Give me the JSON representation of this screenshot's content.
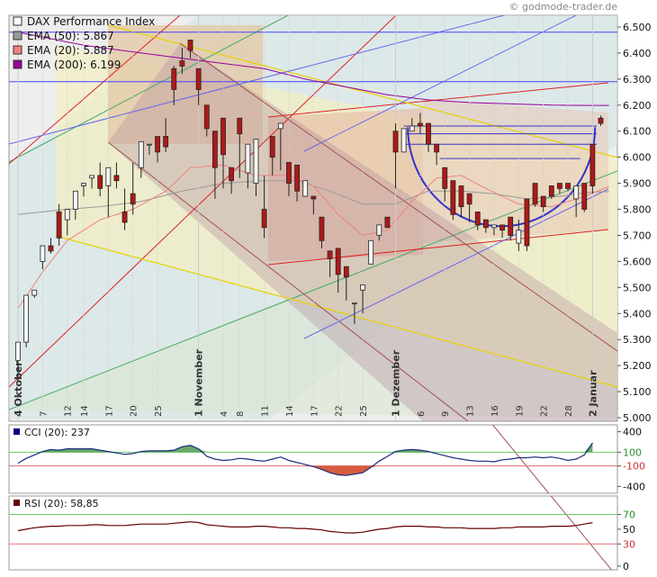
{
  "watermark": "© godmode-trader.de",
  "chart_data": [
    {
      "type": "candlestick",
      "title": "DAX Performance Index",
      "ylim": [
        5000,
        6550
      ],
      "y_ticks": [
        "6.500",
        "6.400",
        "6.300",
        "6.200",
        "6.100",
        "6.000",
        "5.900",
        "5.800",
        "5.700",
        "5.600",
        "5.500",
        "5.400",
        "5.300",
        "5.200",
        "5.100",
        "5.000"
      ],
      "y_tick_values": [
        6500,
        6400,
        6300,
        6200,
        6100,
        6000,
        5900,
        5800,
        5700,
        5600,
        5500,
        5400,
        5300,
        5200,
        5100,
        5000
      ],
      "legend": [
        {
          "label": "DAX Performance Index",
          "color": "#ffffff"
        },
        {
          "label": "EMA (50): 5.867",
          "color": "#999999"
        },
        {
          "label": "EMA (20): 5.887",
          "color": "#f08080"
        },
        {
          "label": "EMA (200): 6.199",
          "color": "#990099"
        }
      ],
      "date_labels": [
        {
          "text": "4 Oktober",
          "month": true,
          "i": 0
        },
        {
          "text": "7",
          "i": 3
        },
        {
          "text": "12",
          "i": 6
        },
        {
          "text": "14",
          "i": 8
        },
        {
          "text": "17",
          "i": 11
        },
        {
          "text": "20",
          "i": 14
        },
        {
          "text": "25",
          "i": 17
        },
        {
          "text": "1 November",
          "month": true,
          "i": 22
        },
        {
          "text": "4",
          "i": 25
        },
        {
          "text": "8",
          "i": 27
        },
        {
          "text": "11",
          "i": 30
        },
        {
          "text": "14",
          "i": 33
        },
        {
          "text": "17",
          "i": 36
        },
        {
          "text": "22",
          "i": 39
        },
        {
          "text": "25",
          "i": 42
        },
        {
          "text": "1 Dezember",
          "month": true,
          "i": 46
        },
        {
          "text": "6",
          "i": 49
        },
        {
          "text": "9",
          "i": 52
        },
        {
          "text": "13",
          "i": 55
        },
        {
          "text": "16",
          "i": 58
        },
        {
          "text": "19",
          "i": 61
        },
        {
          "text": "22",
          "i": 64
        },
        {
          "text": "28",
          "i": 67
        },
        {
          "text": "2 Januar",
          "month": true,
          "i": 70
        }
      ],
      "candles": [
        [
          5220,
          5290,
          5150,
          5140
        ],
        [
          5290,
          5470,
          5270,
          5270
        ],
        [
          5470,
          5490,
          5450,
          5460
        ],
        [
          5600,
          5660,
          5580,
          5570
        ],
        [
          5660,
          5640,
          5690,
          5630
        ],
        [
          5790,
          5690,
          5820,
          5660
        ],
        [
          5760,
          5800,
          5770,
          5700
        ],
        [
          5800,
          5870,
          5770,
          5760
        ],
        [
          5890,
          5900,
          5870,
          5850
        ],
        [
          5920,
          5930,
          5920,
          5880
        ],
        [
          5930,
          5880,
          5980,
          5850
        ],
        [
          5890,
          5960,
          5780,
          5770
        ],
        [
          5930,
          5910,
          5980,
          5880
        ],
        [
          5790,
          5750,
          5880,
          5720
        ],
        [
          5860,
          5820,
          5980,
          5780
        ],
        [
          5960,
          6060,
          5940,
          5920
        ],
        [
          6050,
          6050,
          6030,
          6010
        ],
        [
          6080,
          6020,
          6050,
          5980
        ],
        [
          6080,
          6040,
          6150,
          6020
        ],
        [
          6340,
          6260,
          6350,
          6200
        ],
        [
          6370,
          6350,
          6420,
          6320
        ],
        [
          6450,
          6410,
          6390,
          6380
        ],
        [
          6340,
          6260,
          6280,
          6200
        ],
        [
          6200,
          6110,
          6190,
          6080
        ],
        [
          6100,
          5960,
          5980,
          5840
        ],
        [
          6150,
          6010,
          5920,
          5880
        ],
        [
          5960,
          5910,
          5890,
          5860
        ],
        [
          6150,
          6090,
          5860,
          5920
        ],
        [
          5940,
          6050,
          5950,
          5880
        ],
        [
          5900,
          6070,
          5930,
          5850
        ],
        [
          5800,
          5730,
          5930,
          5690
        ],
        [
          6080,
          6000,
          6080,
          5930
        ],
        [
          6110,
          6130,
          6030,
          5950
        ],
        [
          5980,
          5900,
          5910,
          5850
        ],
        [
          5970,
          5870,
          5900,
          5830
        ],
        [
          5850,
          5910,
          5810,
          5850
        ],
        [
          5850,
          5840,
          5770,
          5780
        ],
        [
          5770,
          5680,
          5760,
          5650
        ],
        [
          5640,
          5610,
          5590,
          5540
        ],
        [
          5650,
          5550,
          5510,
          5480
        ],
        [
          5580,
          5540,
          5480,
          5450
        ],
        [
          5440,
          5440,
          5400,
          5360
        ],
        [
          5490,
          5510,
          5440,
          5400
        ],
        [
          5590,
          5680,
          5590,
          5600
        ],
        [
          5700,
          5740,
          5700,
          5680
        ],
        [
          5770,
          5730,
          5760,
          5730
        ],
        [
          6100,
          6020,
          6130,
          5880
        ],
        [
          6020,
          6110,
          6060,
          6040
        ],
        [
          6100,
          6120,
          6150,
          6130
        ],
        [
          6130,
          6120,
          6170,
          6090
        ],
        [
          6130,
          6050,
          6120,
          6020
        ],
        [
          6050,
          6020,
          6000,
          5970
        ],
        [
          5960,
          5880,
          5960,
          5830
        ],
        [
          5910,
          5780,
          5890,
          5760
        ],
        [
          5890,
          5810,
          5800,
          5770
        ],
        [
          5860,
          5820,
          5790,
          5750
        ],
        [
          5790,
          5740,
          5740,
          5720
        ],
        [
          5760,
          5730,
          5720,
          5710
        ],
        [
          5730,
          5740,
          5720,
          5700
        ],
        [
          5740,
          5720,
          5710,
          5690
        ],
        [
          5770,
          5700,
          5730,
          5680
        ],
        [
          5670,
          5720,
          5760,
          5640
        ],
        [
          5840,
          5660,
          5820,
          5640
        ],
        [
          5900,
          5820,
          5890,
          5810
        ],
        [
          5850,
          5810,
          5810,
          5790
        ],
        [
          5890,
          5850,
          5880,
          5840
        ],
        [
          5900,
          5880,
          5890,
          5860
        ],
        [
          5900,
          5880,
          5890,
          5870
        ],
        [
          5840,
          5890,
          5800,
          5770
        ],
        [
          5900,
          5800,
          5880,
          5790
        ],
        [
          6050,
          5890,
          6040,
          5860
        ],
        [
          6150,
          6130,
          6160,
          6120
        ]
      ],
      "ema_lines": [
        {
          "name": "EMA (200)",
          "color": "#990099",
          "pts": [
            [
              0,
              6480
            ],
            [
              8,
              6430
            ],
            [
              15,
              6400
            ],
            [
              20,
              6380
            ],
            [
              25,
              6360
            ],
            [
              30,
              6340
            ],
            [
              35,
              6300
            ],
            [
              40,
              6270
            ],
            [
              45,
              6240
            ],
            [
              50,
              6220
            ],
            [
              55,
              6210
            ],
            [
              60,
              6205
            ],
            [
              65,
              6200
            ],
            [
              70,
              6199
            ],
            [
              72,
              6199
            ]
          ]
        },
        {
          "name": "EMA (50)",
          "color": "#999999",
          "pts": [
            [
              0,
              5780
            ],
            [
              6,
              5800
            ],
            [
              10,
              5810
            ],
            [
              15,
              5830
            ],
            [
              20,
              5870
            ],
            [
              25,
              5900
            ],
            [
              30,
              5910
            ],
            [
              34,
              5910
            ],
            [
              38,
              5870
            ],
            [
              42,
              5820
            ],
            [
              46,
              5820
            ],
            [
              50,
              5870
            ],
            [
              54,
              5870
            ],
            [
              58,
              5860
            ],
            [
              62,
              5840
            ],
            [
              66,
              5850
            ],
            [
              70,
              5867
            ],
            [
              72,
              5868
            ]
          ]
        },
        {
          "name": "EMA (20)",
          "color": "#f08080",
          "pts": [
            [
              0,
              5420
            ],
            [
              3,
              5560
            ],
            [
              6,
              5680
            ],
            [
              10,
              5760
            ],
            [
              14,
              5800
            ],
            [
              18,
              5870
            ],
            [
              21,
              5960
            ],
            [
              25,
              5970
            ],
            [
              29,
              5930
            ],
            [
              33,
              5930
            ],
            [
              36,
              5890
            ],
            [
              39,
              5780
            ],
            [
              42,
              5700
            ],
            [
              45,
              5720
            ],
            [
              48,
              5830
            ],
            [
              51,
              5920
            ],
            [
              54,
              5930
            ],
            [
              57,
              5880
            ],
            [
              61,
              5820
            ],
            [
              65,
              5810
            ],
            [
              69,
              5850
            ],
            [
              72,
              5887
            ]
          ]
        }
      ],
      "hlines": [
        {
          "value": 6480,
          "color": "#4444ff"
        },
        {
          "value": 6290,
          "color": "#4444ff"
        }
      ]
    },
    {
      "type": "line",
      "title": "CCI (20): 237",
      "legend_color": "#000080",
      "y_ticks": [
        "400",
        "100",
        "-100",
        "-400"
      ],
      "y_tick_values": [
        400,
        100,
        -100,
        -400
      ],
      "tick_colors": [
        "#111111",
        "#2e8b2e",
        "#d03030",
        "#111111"
      ],
      "ylim": [
        -500,
        500
      ],
      "levels": [
        100,
        -100
      ],
      "values": [
        -60,
        10,
        60,
        110,
        140,
        130,
        150,
        150,
        150,
        150,
        130,
        110,
        90,
        70,
        80,
        110,
        120,
        120,
        120,
        130,
        180,
        200,
        150,
        40,
        0,
        -20,
        -10,
        10,
        0,
        -20,
        -30,
        0,
        30,
        -20,
        -50,
        -80,
        -110,
        -150,
        -200,
        -230,
        -240,
        -220,
        -200,
        -120,
        -30,
        40,
        110,
        130,
        140,
        130,
        110,
        80,
        50,
        20,
        0,
        -20,
        -30,
        -30,
        -40,
        -10,
        0,
        20,
        20,
        30,
        20,
        30,
        10,
        -20,
        0,
        60,
        237
      ]
    },
    {
      "type": "line",
      "title": "RSI (20): 58,85",
      "legend_color": "#660000",
      "y_ticks": [
        "70",
        "50",
        "30",
        "0"
      ],
      "y_tick_values": [
        70,
        50,
        30,
        0
      ],
      "tick_colors": [
        "#2e8b2e",
        "#111111",
        "#d03030",
        "#111111"
      ],
      "ylim": [
        -5,
        95
      ],
      "levels": [
        70,
        30
      ],
      "values": [
        48,
        50,
        52,
        53,
        54,
        54,
        55,
        55,
        55,
        56,
        56,
        55,
        55,
        55,
        56,
        57,
        57,
        57,
        57,
        58,
        59,
        60,
        59,
        56,
        55,
        54,
        53,
        53,
        53,
        54,
        54,
        53,
        52,
        52,
        51,
        51,
        50,
        49,
        47,
        46,
        45,
        45,
        46,
        48,
        50,
        51,
        53,
        54,
        54,
        54,
        53,
        53,
        52,
        52,
        52,
        51,
        51,
        51,
        51,
        52,
        52,
        53,
        53,
        53,
        53,
        54,
        54,
        54,
        55,
        57,
        58.85
      ]
    }
  ]
}
